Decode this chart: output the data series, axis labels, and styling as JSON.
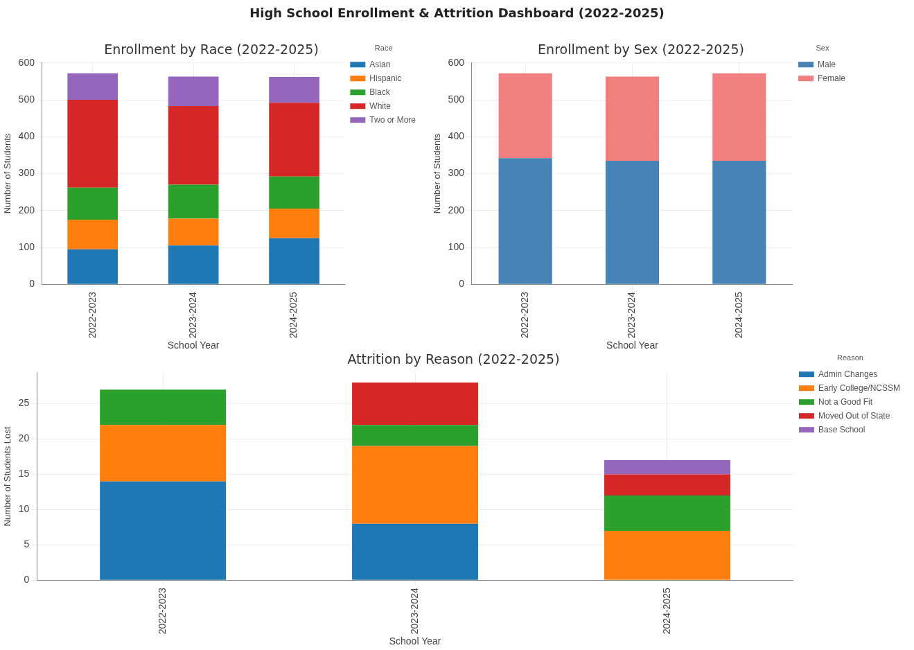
{
  "chart_data": [
    {
      "type": "bar",
      "title": "Enrollment by Race (2022-2025)",
      "xlabel": "School Year",
      "ylabel": "Number of Students",
      "legend_title": "Race",
      "annotations": [
        "High School Enrollment & Attrition Dashboard (2022-2025)"
      ],
      "categories": [
        "2022-2023",
        "2023-2024",
        "2024-2025"
      ],
      "stacked": true,
      "ylim": [
        0,
        600
      ],
      "yticks": [
        0,
        100,
        200,
        300,
        400,
        500,
        600
      ],
      "grid": true,
      "legend": "top right",
      "series": [
        {
          "name": "Asian",
          "color": "#1f77b4",
          "values": [
            95,
            105,
            125
          ]
        },
        {
          "name": "Hispanic",
          "color": "#ff7f0e",
          "values": [
            80,
            73,
            80
          ]
        },
        {
          "name": "Black",
          "color": "#2ca02c",
          "values": [
            87,
            92,
            87
          ]
        },
        {
          "name": "White",
          "color": "#d62728",
          "values": [
            238,
            213,
            200
          ]
        },
        {
          "name": "Two or More",
          "color": "#9467bd",
          "values": [
            72,
            80,
            70
          ]
        }
      ]
    },
    {
      "type": "bar",
      "title": "Enrollment by Sex (2022-2025)",
      "xlabel": "School Year",
      "ylabel": "Number of Students",
      "legend_title": "Sex",
      "categories": [
        "2022-2023",
        "2023-2024",
        "2024-2025"
      ],
      "stacked": true,
      "ylim": [
        0,
        600
      ],
      "yticks": [
        0,
        100,
        200,
        300,
        400,
        500,
        600
      ],
      "grid": true,
      "legend": "top right",
      "series": [
        {
          "name": "Male",
          "color": "#4682b4",
          "values": [
            342,
            335,
            335
          ]
        },
        {
          "name": "Female",
          "color": "#f08080",
          "values": [
            230,
            228,
            237
          ]
        }
      ]
    },
    {
      "type": "bar",
      "title": "Attrition by Reason (2022-2025)",
      "xlabel": "School Year",
      "ylabel": "Number of Students Lost",
      "legend_title": "Reason",
      "categories": [
        "2022-2023",
        "2023-2024",
        "2024-2025"
      ],
      "stacked": true,
      "ylim": [
        0,
        29.4
      ],
      "yticks": [
        0,
        5,
        10,
        15,
        20,
        25
      ],
      "grid": true,
      "legend": "top right",
      "series": [
        {
          "name": "Admin Changes",
          "color": "#1f77b4",
          "values": [
            14,
            8,
            0
          ]
        },
        {
          "name": "Early College/NCSSM",
          "color": "#ff7f0e",
          "values": [
            8,
            11,
            7
          ]
        },
        {
          "name": "Not a Good Fit",
          "color": "#2ca02c",
          "values": [
            5,
            3,
            5
          ]
        },
        {
          "name": "Moved Out of State",
          "color": "#d62728",
          "values": [
            0,
            6,
            3
          ]
        },
        {
          "name": "Base School",
          "color": "#9467bd",
          "values": [
            0,
            0,
            2
          ]
        }
      ]
    }
  ]
}
